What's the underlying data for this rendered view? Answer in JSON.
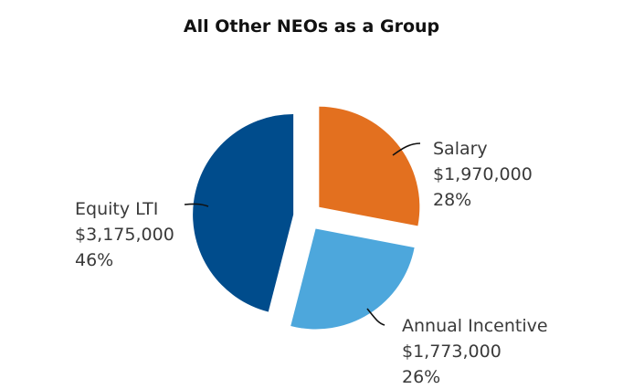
{
  "chart_data": {
    "type": "pie",
    "title": "All Other NEOs as a Group",
    "slices": [
      {
        "name": "Salary",
        "amount": "$1,970,000",
        "percent_label": "28%",
        "value": 28,
        "color": "#e3701f"
      },
      {
        "name": "Annual Incentive",
        "amount": "$1,773,000",
        "percent_label": "26%",
        "value": 26,
        "color": "#4da7dc"
      },
      {
        "name": "Equity LTI",
        "amount": "$3,175,000",
        "percent_label": "46%",
        "value": 46,
        "color": "#004c8c"
      }
    ],
    "exploded": true,
    "legend": "none"
  }
}
